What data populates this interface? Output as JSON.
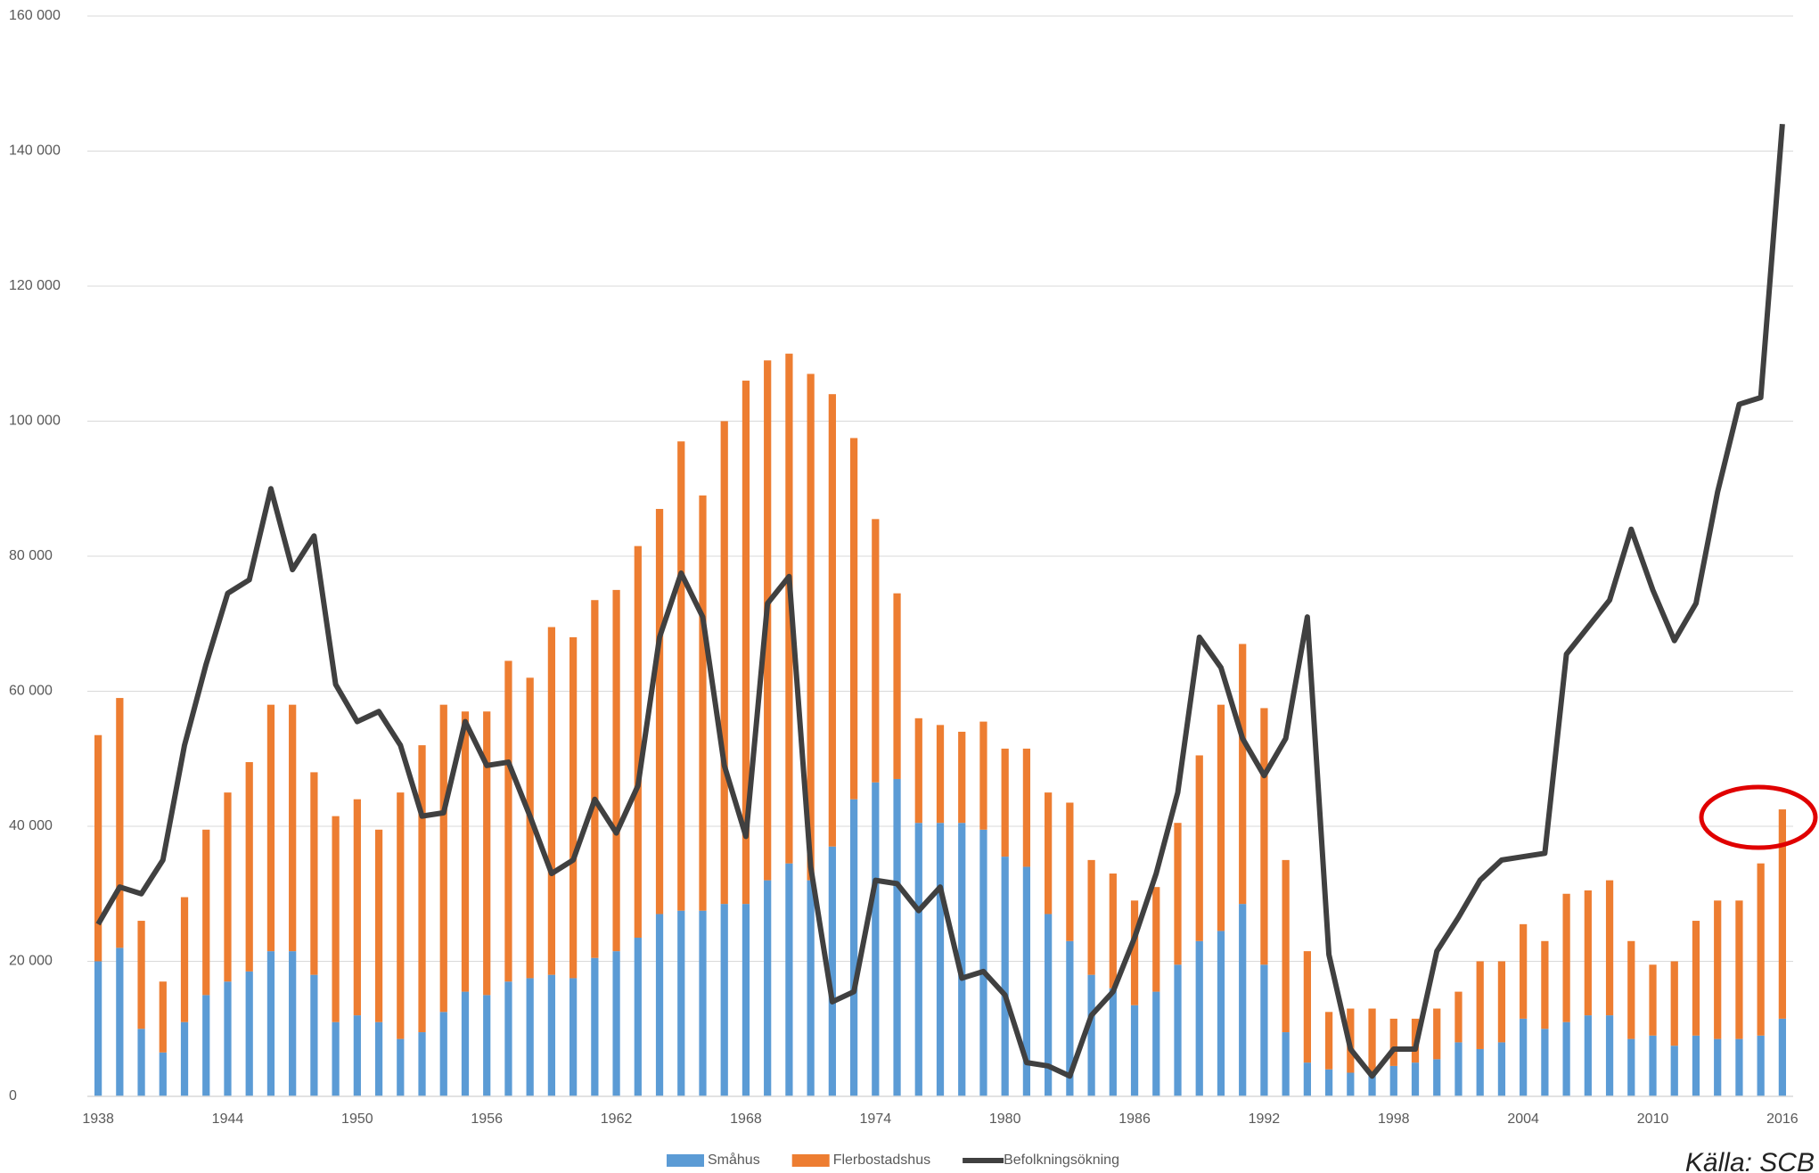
{
  "chart_data": {
    "type": "stacked-bar-line",
    "categories": [
      "1938",
      null,
      null,
      null,
      null,
      null,
      "1944",
      null,
      null,
      null,
      null,
      null,
      "1950",
      null,
      null,
      null,
      null,
      null,
      "1956",
      null,
      null,
      null,
      null,
      null,
      "1962",
      null,
      null,
      null,
      null,
      null,
      "1968",
      null,
      null,
      null,
      null,
      null,
      "1974",
      null,
      null,
      null,
      null,
      null,
      "1980",
      null,
      null,
      null,
      null,
      null,
      "1986",
      null,
      null,
      null,
      null,
      null,
      "1992",
      null,
      null,
      null,
      null,
      null,
      "1998",
      null,
      null,
      null,
      null,
      null,
      "2004",
      null,
      null,
      null,
      null,
      null,
      "2010",
      null,
      null,
      null,
      null,
      null,
      "2016"
    ],
    "series": [
      {
        "name": "Småhus",
        "color": "#5b9bd5",
        "kind": "bar",
        "values": [
          20000,
          22000,
          10000,
          6500,
          11000,
          15000,
          17000,
          18500,
          21500,
          21500,
          18000,
          11000,
          12000,
          11000,
          8500,
          9500,
          12500,
          15500,
          15000,
          17000,
          17500,
          18000,
          17500,
          20500,
          21500,
          23500,
          27000,
          27500,
          27500,
          28500,
          28500,
          32000,
          34500,
          32000,
          37000,
          44000,
          46500,
          47000,
          40500,
          40500,
          40500,
          39500,
          35500,
          34000,
          27000,
          23000,
          18000,
          16000,
          13500,
          15500,
          19500,
          23000,
          24500,
          28500,
          19500,
          9500,
          5000,
          4000,
          3500,
          3500,
          4500,
          5000,
          5500,
          8000,
          7000,
          8000,
          11500,
          10000,
          11000,
          12000,
          12000,
          8500,
          9000,
          7500,
          9000,
          8500,
          8500,
          9000,
          11500
        ]
      },
      {
        "name": "Flerbostadshus",
        "color": "#ed7d31",
        "kind": "bar",
        "values": [
          33500,
          37000,
          16000,
          10500,
          18500,
          24500,
          28000,
          31000,
          36500,
          36500,
          30000,
          30500,
          32000,
          28500,
          36500,
          42500,
          45500,
          41500,
          42000,
          47500,
          44500,
          51500,
          50500,
          53000,
          53500,
          58000,
          60000,
          69500,
          61500,
          71500,
          77500,
          77000,
          75500,
          75000,
          67000,
          53500,
          39000,
          27500,
          15500,
          14500,
          13500,
          16000,
          16000,
          17500,
          18000,
          20500,
          17000,
          17000,
          15500,
          15500,
          21000,
          27500,
          33500,
          38500,
          38000,
          25500,
          16500,
          8500,
          9500,
          9500,
          7000,
          6500,
          7500,
          7500,
          13000,
          12000,
          14000,
          13000,
          19000,
          18500,
          20000,
          14500,
          10500,
          12500,
          17000,
          20500,
          20500,
          25500,
          31000
        ]
      },
      {
        "name": "Befolkningsökning",
        "color": "#404040",
        "kind": "line",
        "values": [
          25500,
          31000,
          30000,
          35000,
          52000,
          64000,
          74500,
          76500,
          90000,
          78000,
          83000,
          61000,
          55500,
          57000,
          52000,
          41500,
          42000,
          55500,
          49000,
          49500,
          41500,
          33000,
          35000,
          44000,
          39000,
          46000,
          68000,
          77500,
          71000,
          49000,
          38500,
          73000,
          77000,
          34000,
          14000,
          15500,
          32000,
          31500,
          27500,
          31000,
          17500,
          18500,
          15000,
          5000,
          4500,
          3000,
          12000,
          15500,
          23500,
          33000,
          45000,
          68000,
          63500,
          53000,
          47500,
          53000,
          71000,
          21000,
          7000,
          3000,
          7000,
          7000,
          21500,
          26500,
          32000,
          35000,
          35500,
          36000,
          65500,
          69500,
          73500,
          84000,
          75000,
          67500,
          73000,
          89500,
          102500,
          103500,
          144000
        ]
      }
    ],
    "ylim": [
      0,
      160000
    ],
    "yticks": [
      {
        "value": 0,
        "label": "0"
      },
      {
        "value": 20000,
        "label": "20 000"
      },
      {
        "value": 40000,
        "label": "40 000"
      },
      {
        "value": 60000,
        "label": "60 000"
      },
      {
        "value": 80000,
        "label": "80 000"
      },
      {
        "value": 100000,
        "label": "100 000"
      },
      {
        "value": 120000,
        "label": "120 000"
      },
      {
        "value": 140000,
        "label": "140 000"
      },
      {
        "value": 160000,
        "label": "160 000"
      }
    ],
    "grid": true,
    "legend": "bottom",
    "source": "Källa: SCB"
  }
}
